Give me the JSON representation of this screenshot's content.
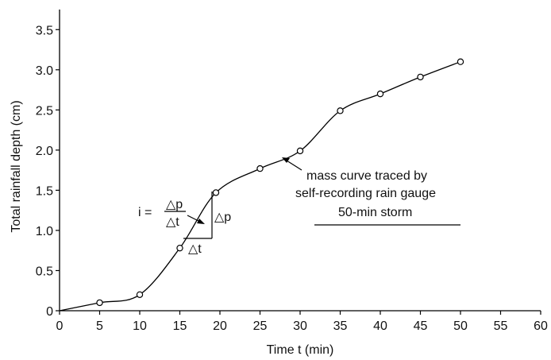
{
  "chart_data": {
    "type": "line",
    "title": "",
    "xlabel": "Time t (min)",
    "ylabel": "Total rainfall depth (cm)",
    "xlim": [
      0,
      60
    ],
    "ylim": [
      0,
      3.75
    ],
    "xticks": [
      0,
      5,
      10,
      15,
      20,
      25,
      30,
      35,
      40,
      45,
      50,
      55,
      60
    ],
    "yticks": [
      0,
      0.5,
      1.0,
      1.5,
      2.0,
      2.5,
      3.0,
      3.5
    ],
    "xtick_labels": [
      "0",
      "5",
      "10",
      "15",
      "20",
      "25",
      "30",
      "35",
      "40",
      "45",
      "50",
      "55",
      "60"
    ],
    "ytick_labels": [
      "0",
      "0.5",
      "1.0",
      "1.5",
      "2.0",
      "2.5",
      "3.0",
      "3.5"
    ],
    "grid": false,
    "series": [
      {
        "x": [
          0,
          5,
          10,
          15,
          19.5,
          25,
          30,
          35,
          40,
          45,
          50
        ],
        "y": [
          0,
          0.1,
          0.2,
          0.78,
          1.47,
          1.77,
          1.99,
          2.49,
          2.7,
          2.91,
          3.1
        ],
        "marker": "open-circle",
        "color": "#000000"
      }
    ],
    "annotations": {
      "curve_label_line1": "mass curve traced by",
      "curve_label_line2": "self-recording rain gauge",
      "storm_label": "50-min storm",
      "formula_i": "i =",
      "formula_num": "△p",
      "formula_den": "△t",
      "delta_p": "△p",
      "delta_t": "△t"
    }
  }
}
